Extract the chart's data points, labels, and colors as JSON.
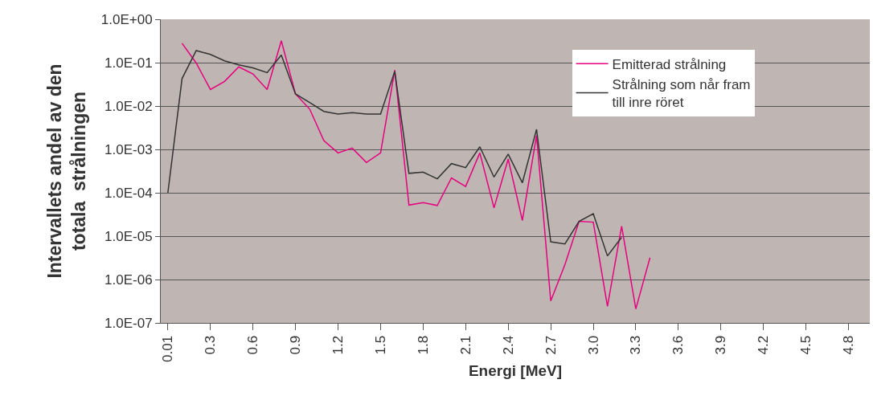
{
  "chart_data": {
    "type": "line",
    "xlabel": "Energi [MeV]",
    "ylabel": "Intervallets andel av den\ntotala  strålningen",
    "categories": [
      "0.01",
      null,
      null,
      "0.3",
      null,
      null,
      "0.6",
      null,
      null,
      "0.9",
      null,
      null,
      "1.2",
      null,
      null,
      "1.5",
      null,
      null,
      "1.8",
      null,
      null,
      "2.1",
      null,
      null,
      "2.4",
      null,
      null,
      "2.7",
      null,
      null,
      "3.0",
      null,
      null,
      "3.3",
      null,
      null,
      "3.6",
      null,
      null,
      "3.9",
      null,
      null,
      "4.2",
      null,
      null,
      "4.5",
      null,
      null,
      "4.8",
      null
    ],
    "series": [
      {
        "name": "Emitterad strålning",
        "color": "#e6007e",
        "values": [
          null,
          0.28,
          0.098,
          0.024,
          0.037,
          0.08,
          0.055,
          0.024,
          0.32,
          0.019,
          0.0085,
          0.0016,
          0.00083,
          0.00107,
          0.0005,
          0.00083,
          0.067,
          5.2e-05,
          5.9e-05,
          5.1e-05,
          0.00022,
          0.00014,
          0.00083,
          4.5e-05,
          0.0006,
          2.3e-05,
          0.0021,
          3.2e-07,
          2.2e-06,
          2.2e-05,
          2.1e-05,
          2.4e-07,
          1.7e-05,
          2.1e-07,
          3.2e-06,
          null,
          null,
          null,
          null,
          null,
          null,
          null,
          null,
          null,
          null,
          null,
          null,
          null,
          null,
          null
        ]
      },
      {
        "name": "Strålning som når fram till inre röret",
        "color": "#333333",
        "values": [
          0.0001,
          0.043,
          0.19,
          0.155,
          0.11,
          0.089,
          0.076,
          0.059,
          0.15,
          0.019,
          0.012,
          0.0075,
          0.0065,
          0.007,
          0.0065,
          0.0065,
          0.063,
          0.00028,
          0.0003,
          0.00021,
          0.00047,
          0.00038,
          0.00115,
          0.00023,
          0.00078,
          0.00017,
          0.0029,
          7.4e-06,
          6.6e-06,
          2.2e-05,
          3.3e-05,
          3.5e-06,
          9.4e-06,
          null,
          null,
          null,
          null,
          null,
          null,
          null,
          null,
          null,
          null,
          null,
          null,
          null,
          null,
          null,
          null,
          null
        ]
      }
    ],
    "log": "y",
    "ylim": [
      1e-07,
      1
    ],
    "yticks": [
      {
        "value": 1e-07,
        "label": "1.0E-07"
      },
      {
        "value": 1e-06,
        "label": "1.0E-06"
      },
      {
        "value": 1e-05,
        "label": "1.0E-05"
      },
      {
        "value": 0.0001,
        "label": "1.0E-04"
      },
      {
        "value": 0.001,
        "label": "1.0E-03"
      },
      {
        "value": 0.01,
        "label": "1.0E-02"
      },
      {
        "value": 0.1,
        "label": "1.0E-01"
      },
      {
        "value": 1,
        "label": "1.0E+00"
      }
    ],
    "grid": "y",
    "legend": "top right",
    "line_style": "solid",
    "marker": "none"
  }
}
